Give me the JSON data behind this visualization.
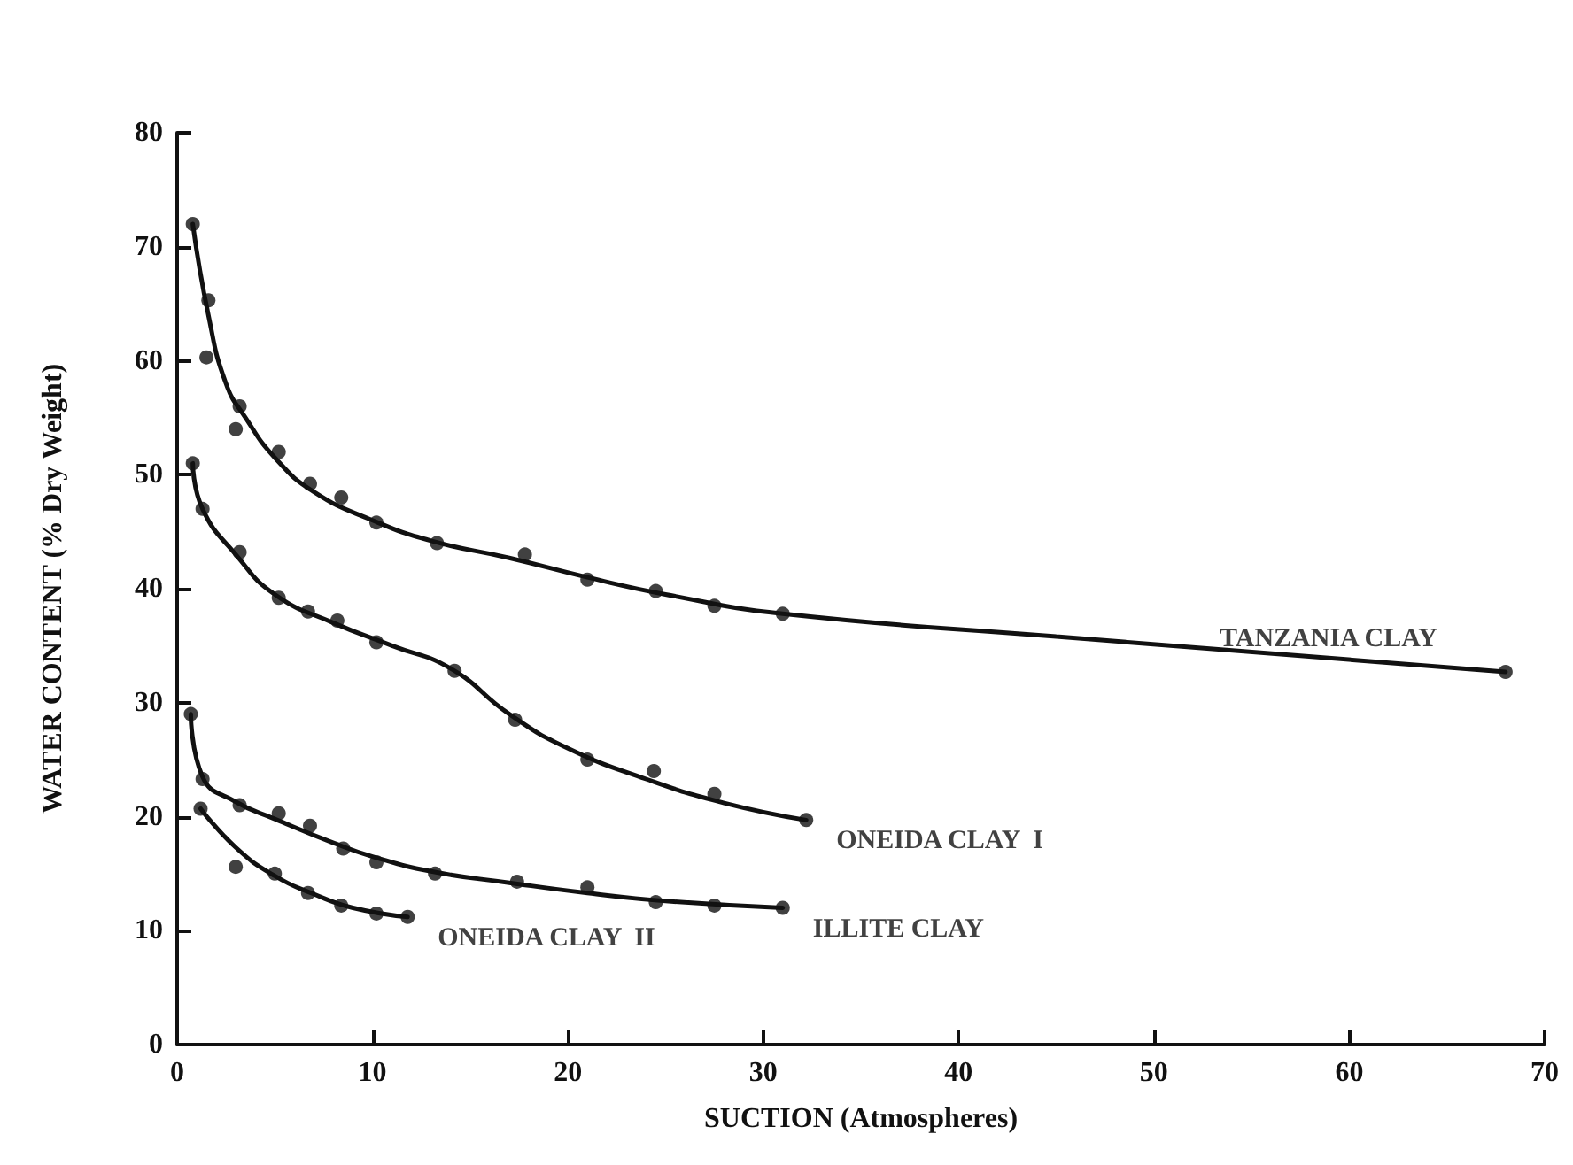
{
  "chart_data": {
    "type": "scatter",
    "xlabel": "SUCTION (Atmospheres)",
    "ylabel": "WATER CONTENT (% Dry Weight)",
    "xlim": [
      0,
      70
    ],
    "xticks": [
      0,
      10,
      20,
      30,
      40,
      50,
      60,
      70
    ],
    "ylim": [
      0,
      80
    ],
    "yticks": [
      0,
      10,
      20,
      30,
      40,
      50,
      60,
      70,
      80
    ],
    "grid": false,
    "legend": false,
    "marker": "circle",
    "series": [
      {
        "name": "TANZANIA CLAY",
        "color": "#111111",
        "x": [
          0.8,
          1.6,
          1.5,
          3.2,
          3.0,
          5.2,
          6.8,
          8.4,
          10.2,
          13.3,
          17.8,
          21,
          24.5,
          27.5,
          31,
          68
        ],
        "values": [
          72,
          65.3,
          60.3,
          56,
          54,
          52,
          49.2,
          48,
          45.8,
          44,
          43,
          40.8,
          39.8,
          38.5,
          37.8,
          32.7
        ]
      },
      {
        "type": "line",
        "color": "#111111",
        "marker": "none",
        "x": [
          0.8,
          1.6,
          2.5,
          3.5,
          5,
          7,
          10,
          13,
          17,
          21,
          25,
          31,
          45,
          68
        ],
        "values": [
          72,
          64,
          58,
          55,
          51.5,
          48.5,
          46,
          44.2,
          42.7,
          41,
          39.5,
          37.8,
          35.8,
          32.7
        ]
      },
      {
        "name": "ONEIDA CLAY  I",
        "color": "#111111",
        "x": [
          0.8,
          1.3,
          3.2,
          5.2,
          6.7,
          8.2,
          10.2,
          14.2,
          17.3,
          21,
          24.4,
          27.5,
          32.2
        ],
        "values": [
          51,
          47,
          43.2,
          39.2,
          38,
          37.2,
          35.3,
          32.8,
          28.5,
          25,
          24,
          22,
          19.7
        ]
      },
      {
        "type": "line",
        "color": "#111111",
        "marker": "none",
        "x": [
          0.8,
          1.3,
          3,
          5,
          8,
          11,
          14,
          17,
          20,
          24,
          28,
          32.2
        ],
        "values": [
          51,
          47,
          43,
          39.5,
          37,
          35,
          33,
          29,
          26,
          23.3,
          21.2,
          19.7
        ]
      },
      {
        "name": "ILLITE CLAY",
        "color": "#111111",
        "x": [
          0.7,
          1.3,
          3.2,
          5.2,
          6.8,
          8.5,
          10.2,
          13.2,
          17.4,
          21,
          24.5,
          27.5,
          31
        ],
        "values": [
          29,
          23.3,
          21,
          20.3,
          19.2,
          17.2,
          16,
          15,
          14.3,
          13.8,
          12.5,
          12.2,
          12
        ]
      },
      {
        "type": "line",
        "color": "#111111",
        "marker": "none",
        "x": [
          0.7,
          1.3,
          3,
          5,
          8,
          10,
          13,
          17,
          21,
          25,
          31
        ],
        "values": [
          29,
          23.5,
          21.3,
          19.8,
          17.7,
          16.5,
          15.2,
          14.2,
          13.3,
          12.6,
          12
        ]
      },
      {
        "name": "ONEIDA CLAY  II",
        "color": "#111111",
        "x": [
          1.2,
          3,
          5,
          6.7,
          8.4,
          10.2,
          11.8
        ],
        "values": [
          20.7,
          15.6,
          15,
          13.3,
          12.2,
          11.5,
          11.2
        ]
      },
      {
        "type": "line",
        "color": "#111111",
        "marker": "none",
        "x": [
          1.2,
          3,
          5,
          7,
          9,
          11.8
        ],
        "values": [
          20.7,
          17.3,
          14.8,
          13.2,
          12,
          11.2
        ]
      }
    ]
  }
}
